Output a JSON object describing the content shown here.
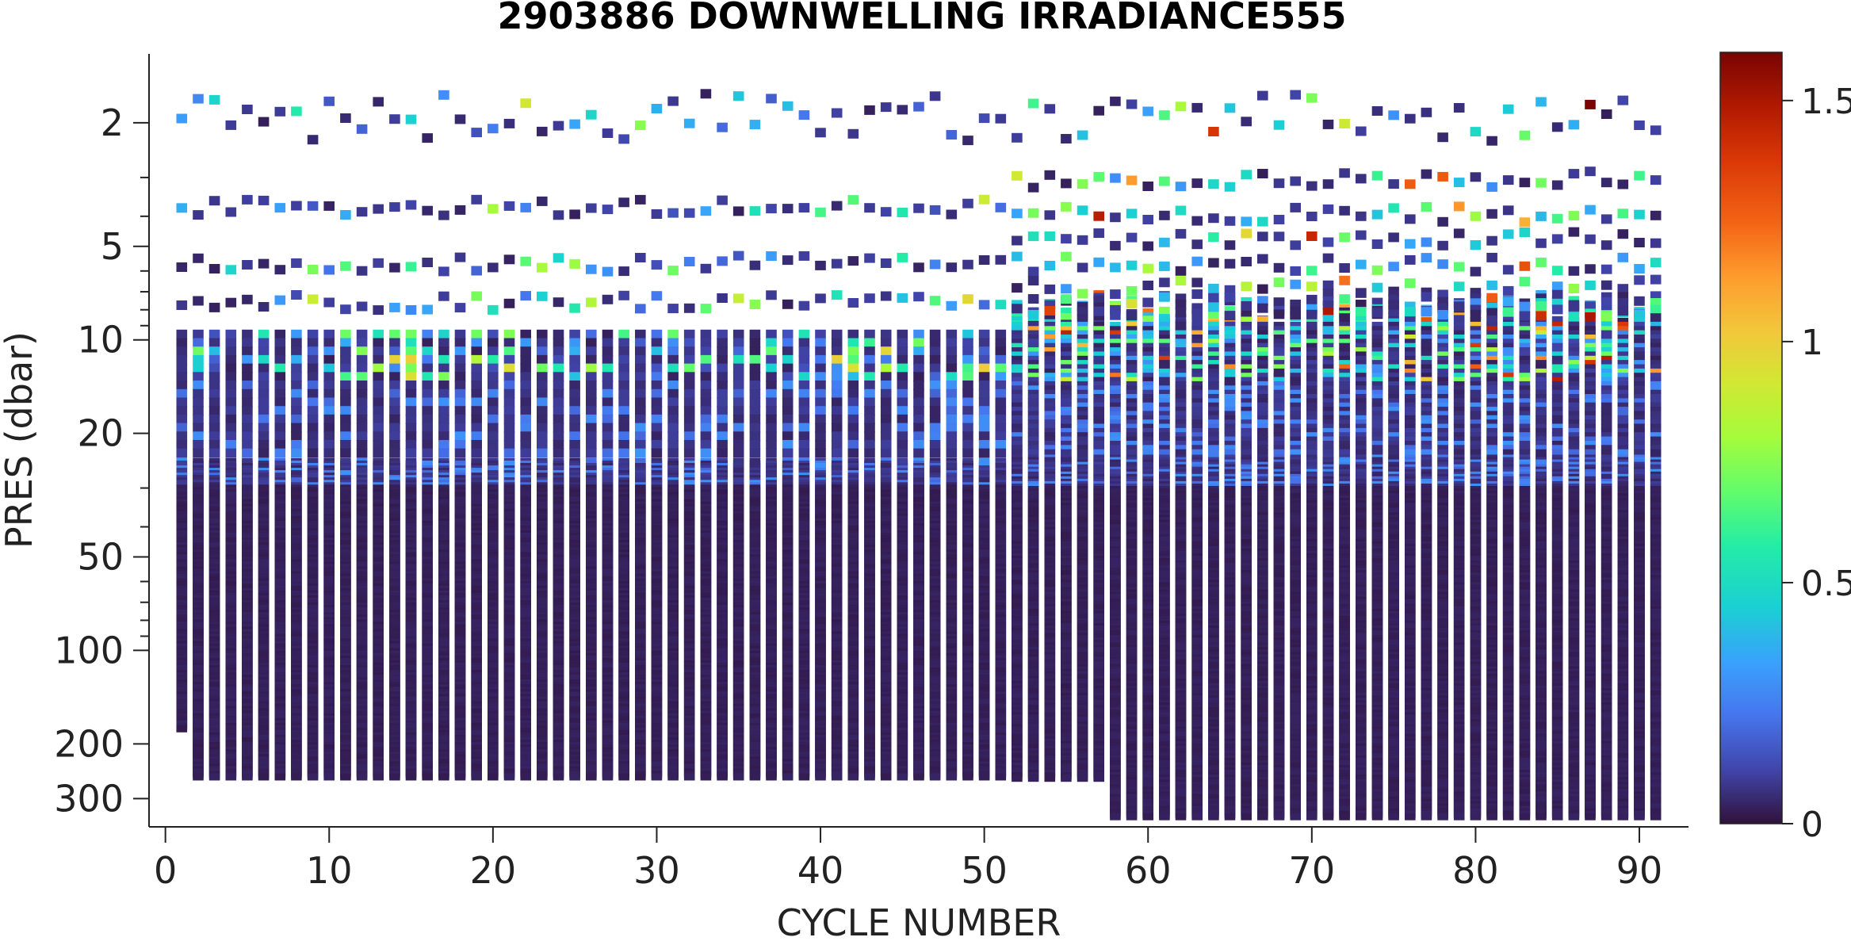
{
  "chart_data": {
    "type": "scatter",
    "title": "2903886  DOWNWELLING IRRADIANCE555",
    "xlabel": "CYCLE NUMBER",
    "ylabel": "PRES (dbar)",
    "xlim": [
      -1,
      93
    ],
    "ylim": [
      1.2,
      370
    ],
    "yscale": "log",
    "yreversed": true,
    "xticks": [
      0,
      10,
      20,
      30,
      40,
      50,
      60,
      70,
      80,
      90
    ],
    "yticks": [
      2,
      5,
      10,
      20,
      50,
      100,
      200,
      300
    ],
    "colorbar": {
      "colormap": "turbo",
      "clim": [
        0,
        1.6
      ],
      "ticks": [
        0,
        0.5,
        1,
        1.5
      ]
    },
    "cycles": {
      "first": 1,
      "last": 91
    },
    "profile_depth_segments": [
      {
        "cycles": [
          1,
          1
        ],
        "max_pres": 180
      },
      {
        "cycles": [
          2,
          57
        ],
        "max_pres": 260
      },
      {
        "cycles": [
          58,
          91
        ],
        "max_pres": 345
      }
    ],
    "surface_irradiance_by_segment": [
      {
        "cycles": [
          1,
          51
        ],
        "near_surface_range": [
          0,
          1.0
        ]
      },
      {
        "cycles": [
          52,
          91
        ],
        "near_surface_range": [
          0,
          1.6
        ],
        "max_observed": {
          "cycle": 87,
          "pres": 2.0,
          "value": 1.6
        }
      }
    ],
    "notes_on_values": "Irradiance is near 0 (dark purple) below ~25 dbar; higher values (blue to red) occur at the shallowest pressures."
  },
  "colors": {
    "background": "#ffffff",
    "axis": "#222222",
    "title": "#000000"
  }
}
